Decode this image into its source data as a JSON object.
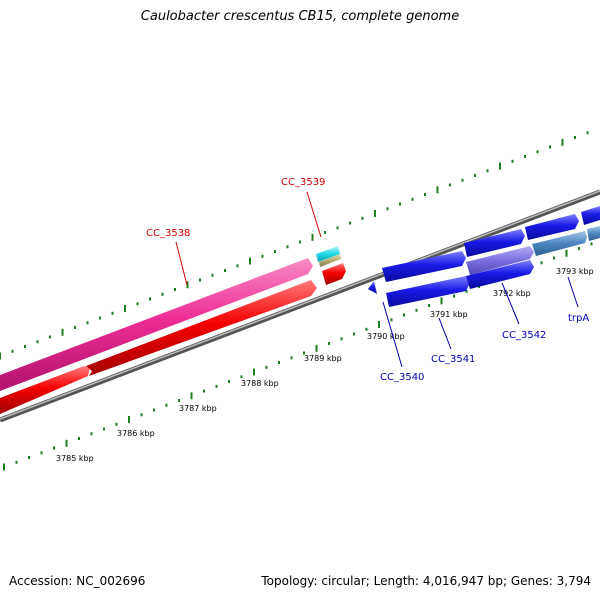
{
  "title": "Caulobacter crescentus CB15, complete genome",
  "footer": {
    "accession": "Accession: NC_002696",
    "summary": "Topology: circular; Length: 4,016,947 bp; Genes: 3,794"
  },
  "scale_labels": [
    "3785 kbp",
    "3786 kbp",
    "3787 kbp",
    "3788 kbp",
    "3789 kbp",
    "3790 kbp",
    "3791 kbp",
    "3792 kbp",
    "3793 kbp"
  ],
  "gene_labels": {
    "cc3538": "CC_3538",
    "cc3539": "CC_3539",
    "cc3540": "CC_3540",
    "cc3541": "CC_3541",
    "cc3542": "CC_3542",
    "trpA": "trpA"
  },
  "colors": {
    "forward_gene": "#ee2e95",
    "reverse_gene": "#f40000",
    "blue_gene": "#1a1ae6",
    "cyan_gene": "#1fd9e6",
    "tan_gene": "#b4ad72",
    "purple_gene": "#7b6fe0",
    "steel_gene": "#4b86c0",
    "backbone": "#777777",
    "ticks": "#1f7f1f",
    "red_label": "#d40000",
    "blue_label": "#0000b0"
  }
}
